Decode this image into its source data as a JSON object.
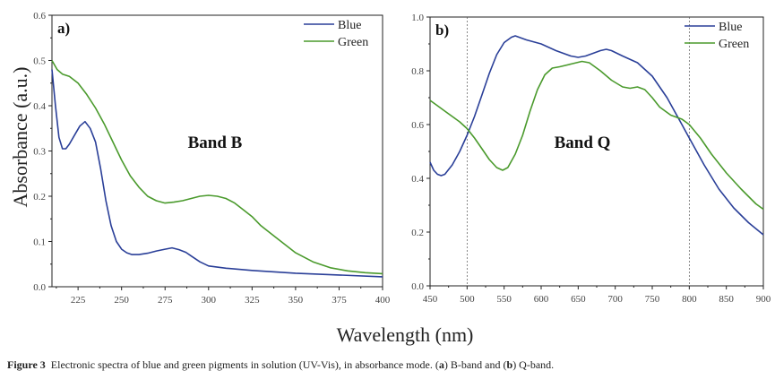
{
  "colors": {
    "blue": "#2a3f98",
    "green": "#4a9a2c",
    "axis": "#222222",
    "dotted": "#555555"
  },
  "chart_data": [
    {
      "type": "line",
      "panel_label": "a)",
      "annotation": "Band B",
      "xlabel": "Wavelength (nm)",
      "ylabel": "Absorbance (a.u.)",
      "xlim": [
        210,
        400
      ],
      "ylim": [
        0.0,
        0.6
      ],
      "xticks": [
        225,
        250,
        275,
        300,
        325,
        350,
        375,
        400
      ],
      "xtick_labels": [
        "225",
        "250",
        "275",
        "300",
        "325",
        "350",
        "375",
        "400"
      ],
      "yticks": [
        0.0,
        0.1,
        0.2,
        0.3,
        0.4,
        0.5,
        0.6
      ],
      "ytick_labels": [
        "0.0",
        "0.1",
        "0.2",
        "0.3",
        "0.4",
        "0.5",
        "0.6"
      ],
      "legend": {
        "placement": "top-right",
        "entries": [
          "Blue",
          "Green"
        ]
      },
      "grid": false,
      "series": [
        {
          "name": "Blue",
          "color_key": "blue",
          "x": [
            210,
            212,
            214,
            216,
            218,
            220,
            223,
            226,
            229,
            232,
            235,
            238,
            241,
            244,
            247,
            250,
            253,
            256,
            260,
            265,
            270,
            275,
            279,
            283,
            287,
            290,
            295,
            300,
            310,
            325,
            350,
            375,
            400
          ],
          "y": [
            0.48,
            0.4,
            0.33,
            0.305,
            0.305,
            0.315,
            0.335,
            0.355,
            0.365,
            0.35,
            0.32,
            0.26,
            0.19,
            0.135,
            0.1,
            0.083,
            0.075,
            0.071,
            0.071,
            0.074,
            0.079,
            0.083,
            0.086,
            0.082,
            0.076,
            0.068,
            0.055,
            0.046,
            0.041,
            0.036,
            0.03,
            0.026,
            0.022
          ]
        },
        {
          "name": "Green",
          "color_key": "green",
          "x": [
            210,
            213,
            216,
            220,
            225,
            230,
            235,
            240,
            245,
            250,
            255,
            260,
            265,
            270,
            275,
            280,
            285,
            290,
            295,
            300,
            305,
            310,
            315,
            320,
            325,
            330,
            340,
            350,
            360,
            370,
            380,
            390,
            400
          ],
          "y": [
            0.5,
            0.48,
            0.47,
            0.465,
            0.45,
            0.425,
            0.395,
            0.36,
            0.32,
            0.28,
            0.245,
            0.22,
            0.2,
            0.19,
            0.185,
            0.187,
            0.19,
            0.195,
            0.2,
            0.202,
            0.2,
            0.195,
            0.185,
            0.17,
            0.155,
            0.135,
            0.105,
            0.075,
            0.055,
            0.042,
            0.035,
            0.031,
            0.029
          ]
        }
      ]
    },
    {
      "type": "line",
      "panel_label": "b)",
      "annotation": "Band Q",
      "xlabel": "Wavelength (nm)",
      "ylabel": "",
      "xlim": [
        450,
        900
      ],
      "ylim": [
        0.0,
        1.0
      ],
      "xticks": [
        450,
        500,
        550,
        600,
        650,
        700,
        750,
        800,
        850,
        900
      ],
      "xtick_labels": [
        "450",
        "500",
        "550",
        "600",
        "650",
        "700",
        "750",
        "800",
        "850",
        "900"
      ],
      "yticks": [
        0.0,
        0.2,
        0.4,
        0.6,
        0.8,
        1.0
      ],
      "ytick_labels": [
        "0.0",
        "0.2",
        "0.4",
        "0.6",
        "0.8",
        "1.0"
      ],
      "reference_lines_x": [
        500,
        800
      ],
      "legend": {
        "placement": "top-right",
        "entries": [
          "Blue",
          "Green"
        ]
      },
      "grid": false,
      "series": [
        {
          "name": "Blue",
          "color_key": "blue",
          "x": [
            450,
            455,
            460,
            465,
            470,
            480,
            490,
            500,
            510,
            520,
            530,
            540,
            550,
            560,
            565,
            570,
            580,
            600,
            620,
            640,
            650,
            660,
            670,
            680,
            688,
            695,
            710,
            730,
            750,
            770,
            790,
            800,
            820,
            840,
            860,
            880,
            900
          ],
          "y": [
            0.46,
            0.43,
            0.415,
            0.41,
            0.415,
            0.45,
            0.5,
            0.56,
            0.63,
            0.71,
            0.79,
            0.86,
            0.905,
            0.925,
            0.93,
            0.925,
            0.915,
            0.9,
            0.875,
            0.855,
            0.85,
            0.855,
            0.865,
            0.875,
            0.88,
            0.875,
            0.855,
            0.83,
            0.78,
            0.7,
            0.6,
            0.55,
            0.45,
            0.36,
            0.29,
            0.235,
            0.19
          ]
        },
        {
          "name": "Green",
          "color_key": "green",
          "x": [
            450,
            460,
            470,
            480,
            490,
            500,
            510,
            520,
            530,
            540,
            548,
            555,
            565,
            575,
            585,
            595,
            605,
            615,
            625,
            640,
            655,
            665,
            680,
            695,
            710,
            720,
            730,
            740,
            750,
            760,
            775,
            790,
            800,
            815,
            830,
            850,
            870,
            890,
            900
          ],
          "y": [
            0.69,
            0.67,
            0.65,
            0.63,
            0.61,
            0.585,
            0.55,
            0.51,
            0.47,
            0.44,
            0.43,
            0.44,
            0.49,
            0.56,
            0.65,
            0.73,
            0.785,
            0.81,
            0.815,
            0.825,
            0.835,
            0.83,
            0.8,
            0.765,
            0.74,
            0.735,
            0.74,
            0.73,
            0.7,
            0.665,
            0.635,
            0.62,
            0.6,
            0.55,
            0.49,
            0.42,
            0.36,
            0.305,
            0.285
          ]
        }
      ]
    }
  ],
  "caption": {
    "figure_number": "Figure 3",
    "text_part1": "Electronic spectra of blue and green pigments in solution (UV-Vis), in absorbance mode. (",
    "a_label": "a",
    "text_part2": ") B-band and (",
    "b_label": "b",
    "text_part3": ") Q-band."
  }
}
